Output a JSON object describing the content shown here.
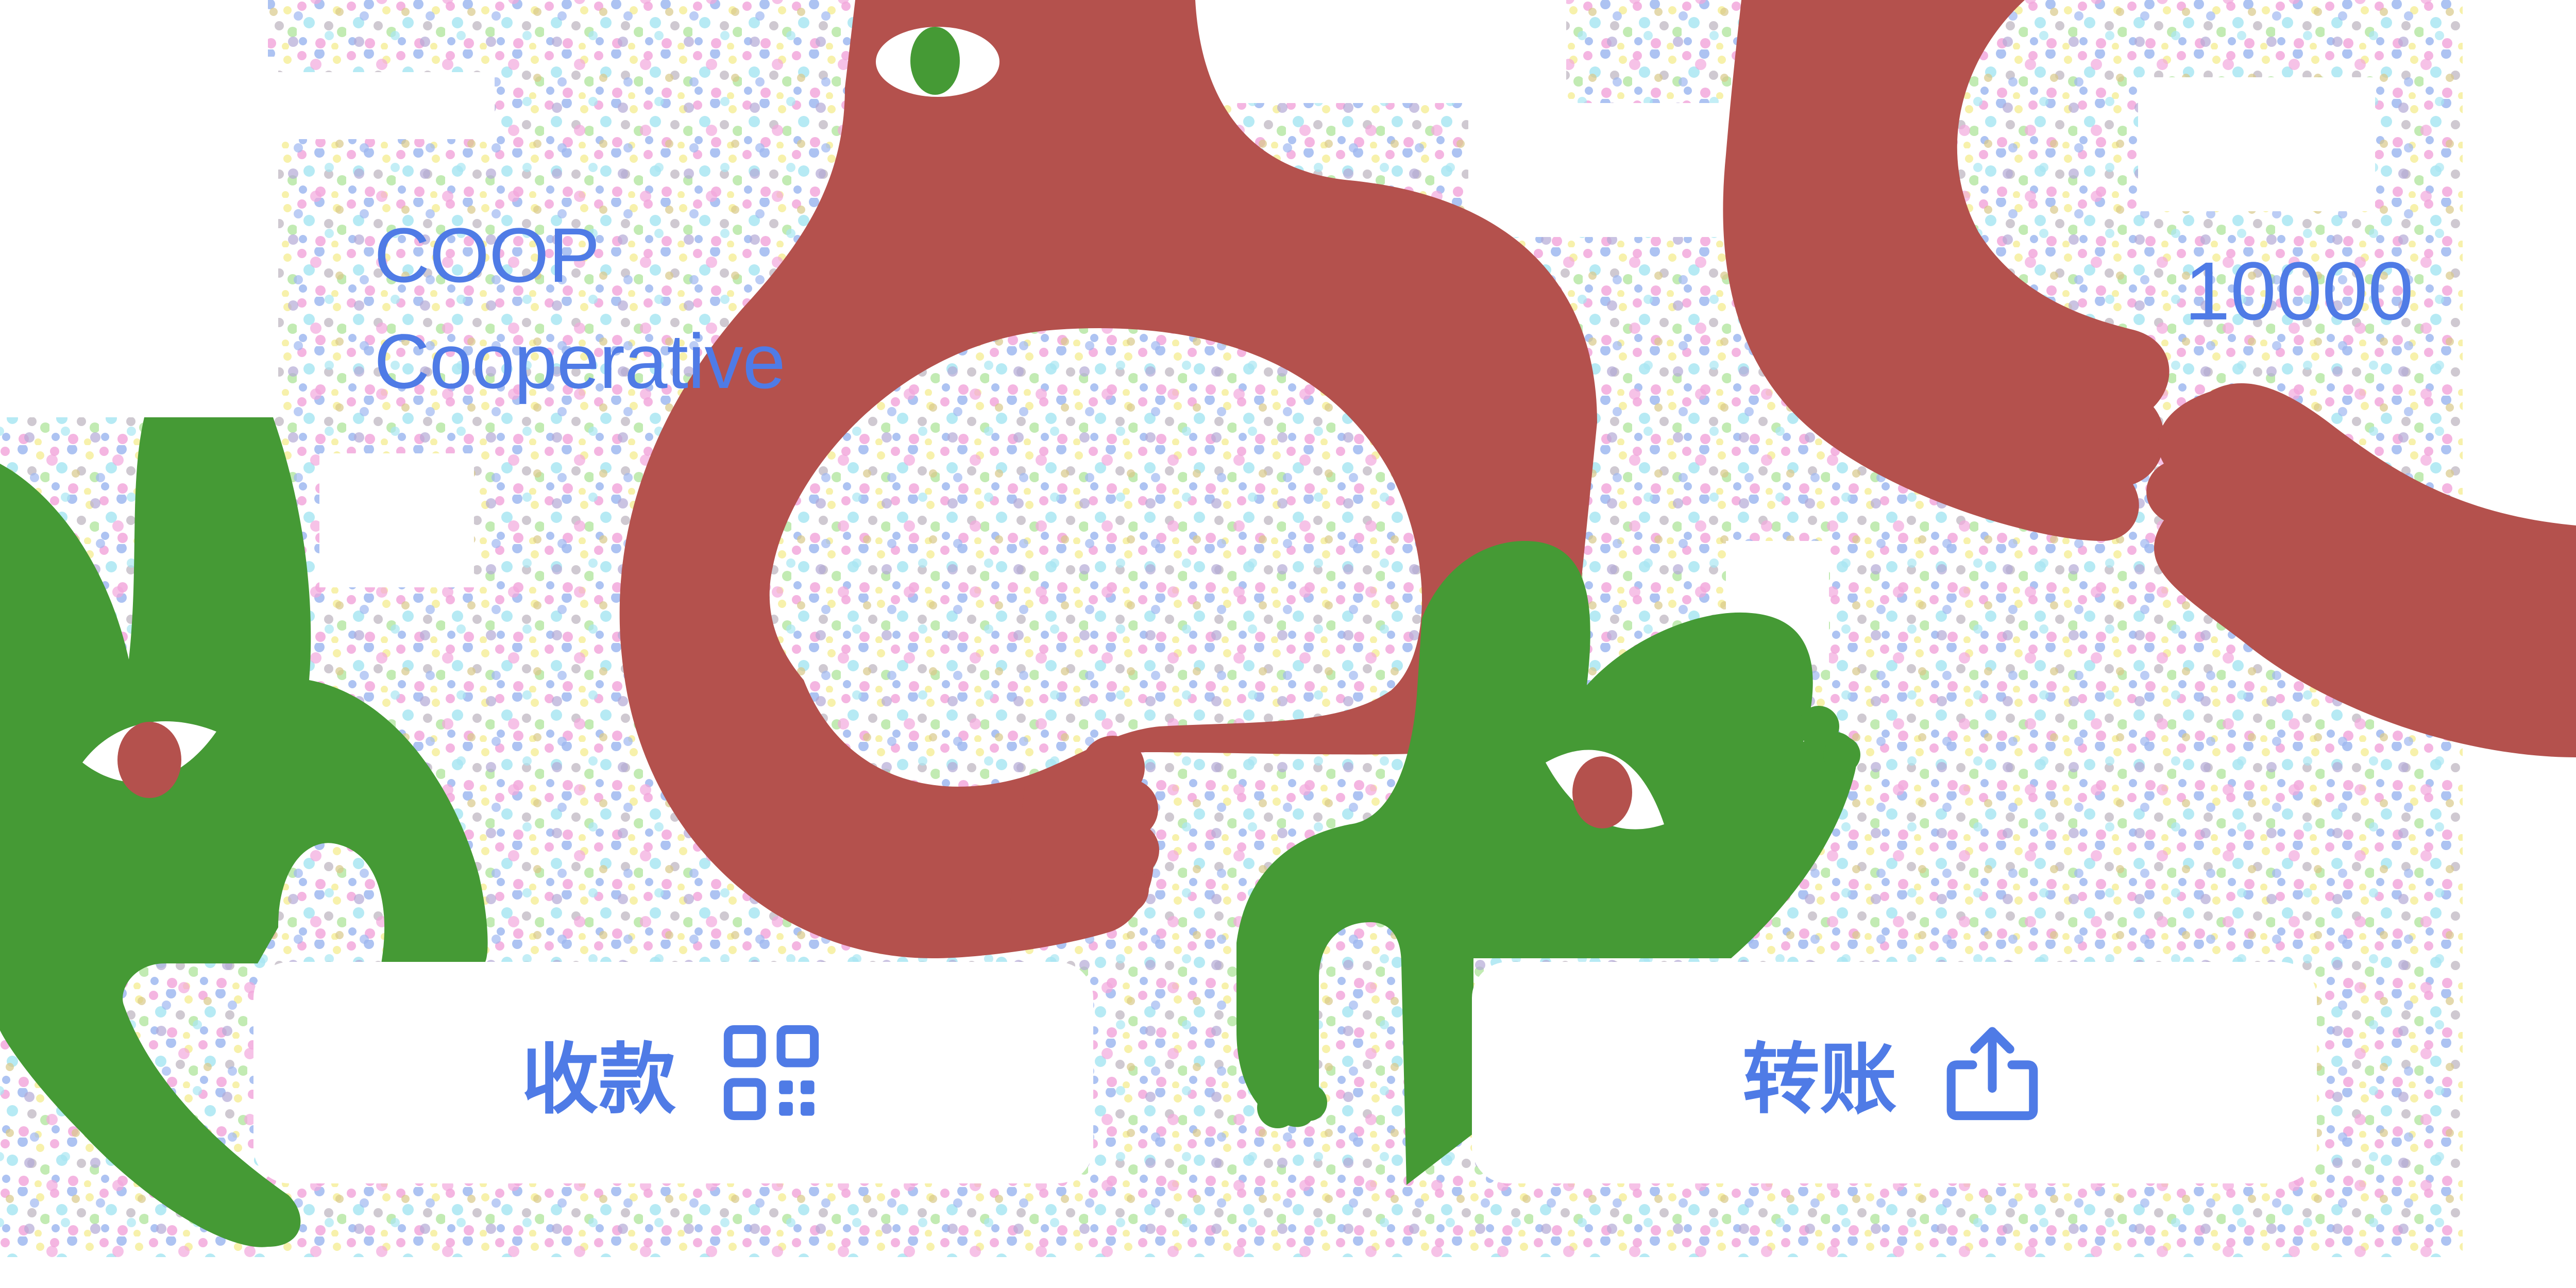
{
  "token": {
    "symbol": "COOP",
    "name": "Cooperative",
    "balance": "10000"
  },
  "actions": {
    "receive_label": "收款",
    "transfer_label": "转账"
  },
  "icons": {
    "receive": "qr-code-icon",
    "transfer": "share-upload-icon"
  },
  "colors": {
    "text_accent": "#4F7BE6",
    "creature_red": "#B4514D",
    "creature_green": "#459A35",
    "button_bg": "#FFFFFF"
  }
}
